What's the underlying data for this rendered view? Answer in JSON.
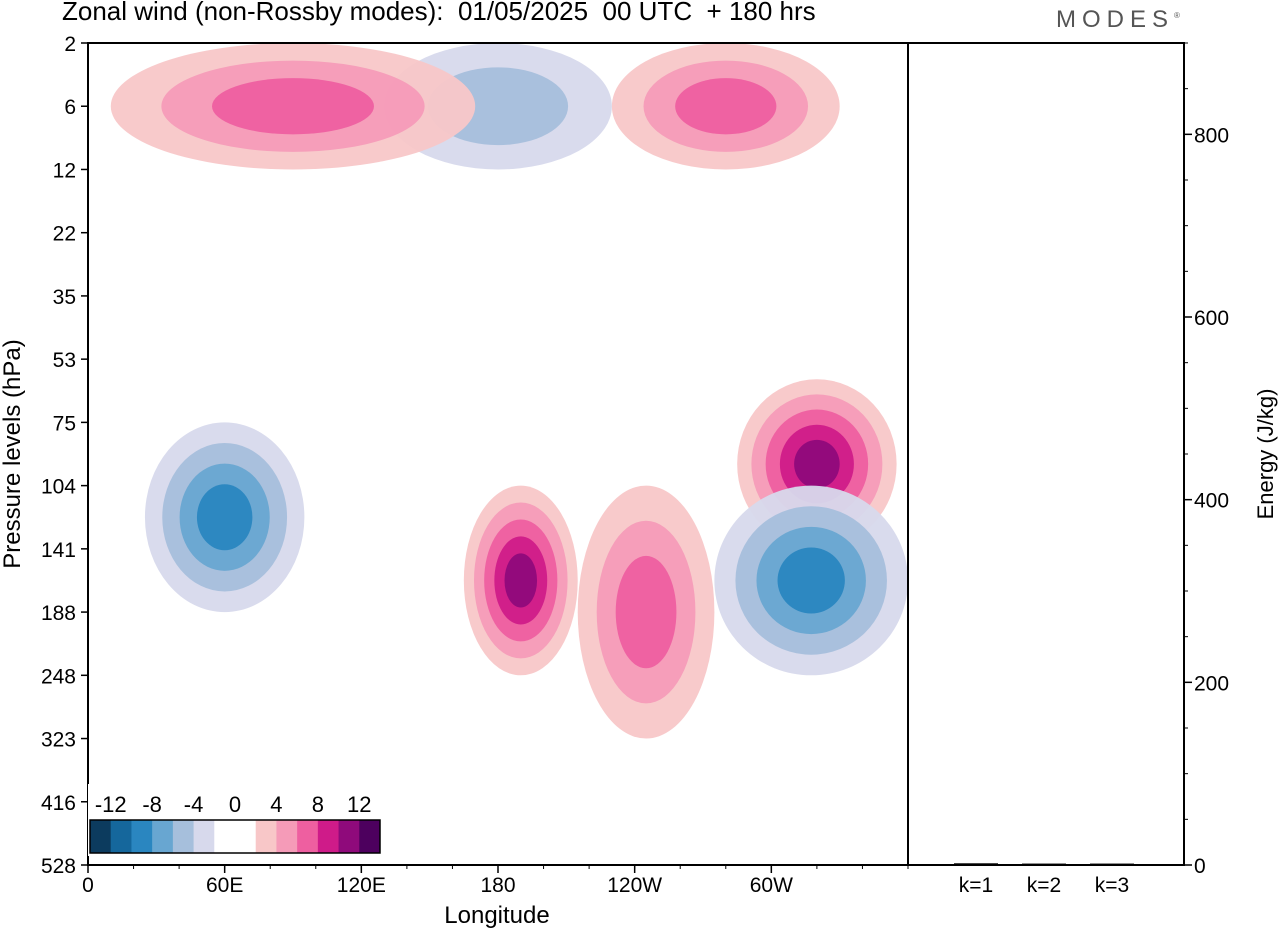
{
  "header": {
    "title": "Zonal wind (non-Rossby modes):  01/05/2025  00 UTC  + 180 hrs",
    "brand": "MODES",
    "brand_mark": "®"
  },
  "chart_data": [
    {
      "type": "heatmap",
      "title": "Zonal wind (non-Rossby modes):  01/05/2025  00 UTC  + 180 hrs",
      "xlabel": "Longitude",
      "ylabel": "Pressure levels (hPa)",
      "x_ticks": [
        "0",
        "60E",
        "120E",
        "180",
        "120W",
        "60W"
      ],
      "x_tick_degrees": [
        0,
        60,
        120,
        180,
        240,
        300
      ],
      "xlim": [
        0,
        360
      ],
      "y_ticks": [
        "2",
        "6",
        "12",
        "22",
        "35",
        "53",
        "75",
        "104",
        "141",
        "188",
        "248",
        "323",
        "416",
        "528"
      ],
      "colorbar": {
        "labels": [
          "-12",
          "-8",
          "-4",
          "0",
          "4",
          "8",
          "12"
        ],
        "colors": [
          "#0c3b5e",
          "#15679c",
          "#2a86c0",
          "#68a6d1",
          "#a6bfdc",
          "#d7d9ec",
          "#ffffff",
          "#ffffff",
          "#f8c7c8",
          "#f59bb8",
          "#ee5fa0",
          "#cf1b89",
          "#8f0a7b",
          "#4d005e"
        ]
      },
      "features": [
        {
          "sign": "negative",
          "lon": [
            25,
            95
          ],
          "level": [
            75,
            188
          ],
          "peak": -9
        },
        {
          "sign": "positive",
          "lon": [
            165,
            215
          ],
          "level": [
            104,
            248
          ],
          "peak": 10
        },
        {
          "sign": "positive",
          "lon": [
            215,
            275
          ],
          "level": [
            104,
            323
          ],
          "peak": 7
        },
        {
          "sign": "positive",
          "lon": [
            285,
            355
          ],
          "level": [
            60,
            141
          ],
          "peak": 11
        },
        {
          "sign": "negative",
          "lon": [
            275,
            360
          ],
          "level": [
            104,
            248
          ],
          "peak": -8
        },
        {
          "sign": "negative",
          "lon": [
            130,
            230
          ],
          "level": [
            2,
            12
          ],
          "peak": -5
        },
        {
          "sign": "positive",
          "lon": [
            10,
            170
          ],
          "level": [
            2,
            12
          ],
          "peak": 6
        },
        {
          "sign": "positive",
          "lon": [
            230,
            330
          ],
          "level": [
            2,
            12
          ],
          "peak": 6
        }
      ]
    },
    {
      "type": "bar",
      "ylabel": "Energy (J/kg)",
      "categories": [
        "k=1",
        "k=2",
        "k=3"
      ],
      "values": [
        2,
        1,
        0.5
      ],
      "ylim": [
        0,
        900
      ],
      "y_ticks": [
        "0",
        "200",
        "400",
        "600",
        "800"
      ]
    }
  ]
}
